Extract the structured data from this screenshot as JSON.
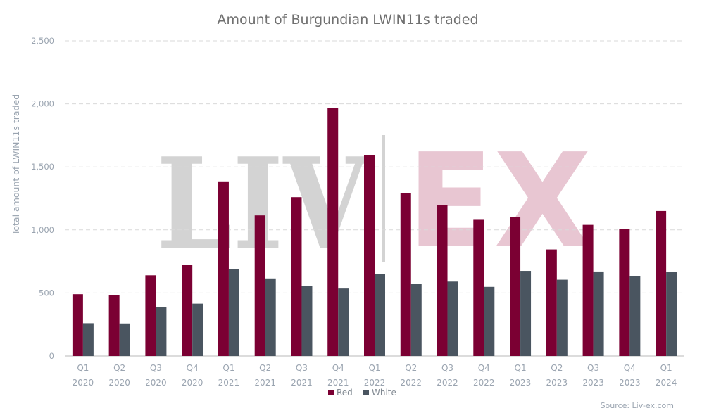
{
  "chart_data": {
    "type": "bar",
    "title": "Amount of Burgundian LWIN11s traded",
    "ylabel": "Total amount of LWIN11s traded",
    "xlabel": "",
    "ylim": [
      0,
      2500
    ],
    "yticks": [
      0,
      500,
      1000,
      1500,
      2000,
      2500
    ],
    "ytick_labels": [
      "0",
      "500",
      "1,000",
      "1,500",
      "2,000",
      "2,500"
    ],
    "grid": true,
    "legend_placement": "bottom",
    "categories": [
      [
        "Q1",
        "2020"
      ],
      [
        "Q2",
        "2020"
      ],
      [
        "Q3",
        "2020"
      ],
      [
        "Q4",
        "2020"
      ],
      [
        "Q1",
        "2021"
      ],
      [
        "Q2",
        "2021"
      ],
      [
        "Q3",
        "2021"
      ],
      [
        "Q4",
        "2021"
      ],
      [
        "Q1",
        "2022"
      ],
      [
        "Q2",
        "2022"
      ],
      [
        "Q3",
        "2022"
      ],
      [
        "Q4",
        "2022"
      ],
      [
        "Q1",
        "2023"
      ],
      [
        "Q2",
        "2023"
      ],
      [
        "Q3",
        "2023"
      ],
      [
        "Q4",
        "2023"
      ],
      [
        "Q1",
        "2024"
      ]
    ],
    "series": [
      {
        "name": "Red",
        "color": "#7b0033",
        "values": [
          490,
          485,
          640,
          720,
          1385,
          1115,
          1260,
          1965,
          1595,
          1290,
          1195,
          1080,
          1100,
          845,
          1040,
          1005,
          1150
        ]
      },
      {
        "name": "White",
        "color": "#4a5560",
        "values": [
          260,
          258,
          385,
          415,
          690,
          615,
          555,
          535,
          650,
          570,
          590,
          548,
          675,
          605,
          670,
          635,
          665
        ]
      }
    ],
    "watermark": {
      "left": "LIV",
      "right": "EX",
      "left_color": "#d3d3d3",
      "right_color": "#e8c6d2"
    },
    "source": "Source: Liv-ex.com"
  }
}
